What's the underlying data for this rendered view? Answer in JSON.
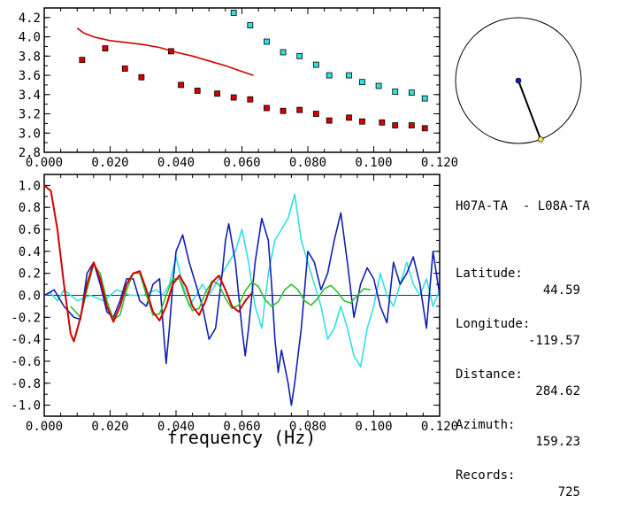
{
  "station_pair": "H07A-TA  - L08A-TA",
  "info": [
    {
      "label": "Latitude:",
      "value": "44.59"
    },
    {
      "label": "Longitude:",
      "value": "-119.57"
    },
    {
      "label": "Distance:",
      "value": "284.62"
    },
    {
      "label": "Azimuth:",
      "value": "159.23"
    },
    {
      "label": "Records:",
      "value": "725"
    }
  ],
  "azimuth_deg": 159.23,
  "colors": {
    "red": "#d40000",
    "cyan": "#30e0e0",
    "blue": "#1020b0",
    "green": "#30c030",
    "yellow": "#f0e050"
  },
  "chart_data": [
    {
      "type": "scatter",
      "xlim": [
        0.0,
        0.12
      ],
      "ylim": [
        2.8,
        4.3
      ],
      "xticks": [
        "0.000",
        "0.020",
        "0.040",
        "0.060",
        "0.080",
        "0.100",
        "0.120"
      ],
      "yticks": [
        "2.8",
        "3.0",
        "3.2",
        "3.4",
        "3.6",
        "3.8",
        "4.0",
        "4.2"
      ],
      "series": [
        {
          "kind": "points",
          "color": "red",
          "x": [
            0.0115,
            0.0185,
            0.0245,
            0.0295,
            0.0385,
            0.0415,
            0.0465,
            0.0525,
            0.0575,
            0.0625,
            0.0675,
            0.0725,
            0.0775,
            0.0825,
            0.0865,
            0.0925,
            0.0965,
            0.1025,
            0.1065,
            0.1115,
            0.1155
          ],
          "y": [
            3.76,
            3.88,
            3.67,
            3.58,
            3.85,
            3.5,
            3.44,
            3.41,
            3.37,
            3.35,
            3.26,
            3.23,
            3.24,
            3.2,
            3.13,
            3.16,
            3.12,
            3.11,
            3.08,
            3.08,
            3.05
          ]
        },
        {
          "kind": "points",
          "color": "cyan",
          "x": [
            0.0575,
            0.0625,
            0.0675,
            0.0725,
            0.0775,
            0.0825,
            0.0865,
            0.0925,
            0.0965,
            0.1015,
            0.1065,
            0.1115,
            0.1155
          ],
          "y": [
            4.25,
            4.12,
            3.95,
            3.84,
            3.8,
            3.71,
            3.6,
            3.6,
            3.53,
            3.49,
            3.43,
            3.42,
            3.36
          ]
        },
        {
          "kind": "line",
          "color": "red",
          "x": [
            0.01,
            0.012,
            0.015,
            0.02,
            0.025,
            0.03,
            0.035,
            0.04,
            0.045,
            0.05,
            0.055,
            0.06,
            0.0635
          ],
          "y": [
            4.09,
            4.04,
            4.0,
            3.96,
            3.94,
            3.92,
            3.89,
            3.84,
            3.8,
            3.75,
            3.7,
            3.64,
            3.6
          ]
        }
      ]
    },
    {
      "type": "line",
      "xlim": [
        0.0,
        0.12
      ],
      "ylim": [
        -1.1,
        1.1
      ],
      "xticks": [
        "0.000",
        "0.020",
        "0.040",
        "0.060",
        "0.080",
        "0.100",
        "0.120"
      ],
      "yticks": [
        "1.0",
        "0.8",
        "0.6",
        "0.4",
        "0.2",
        "0.0",
        "-0.2",
        "-0.4",
        "-0.6",
        "-0.8",
        "-1.0"
      ],
      "ytick_values": [
        1.0,
        0.8,
        0.6,
        0.4,
        0.2,
        0.0,
        -0.2,
        -0.4,
        -0.6,
        -0.8,
        -1.0
      ],
      "xlabel": "frequency (Hz)",
      "series": [
        {
          "color": "red",
          "x": [
            0,
            0.002,
            0.004,
            0.006,
            0.008,
            0.009,
            0.011,
            0.013,
            0.015,
            0.017,
            0.019,
            0.021,
            0.023,
            0.025,
            0.027,
            0.029,
            0.031,
            0.033,
            0.035,
            0.037,
            0.039,
            0.041,
            0.043,
            0.045,
            0.047,
            0.049,
            0.051,
            0.053,
            0.055,
            0.057,
            0.059,
            0.061,
            0.063
          ],
          "y": [
            1.0,
            0.95,
            0.6,
            0.1,
            -0.35,
            -0.42,
            -0.2,
            0.1,
            0.3,
            0.15,
            -0.1,
            -0.24,
            -0.1,
            0.1,
            0.2,
            0.22,
            0.05,
            -0.15,
            -0.23,
            -0.1,
            0.1,
            0.18,
            0.08,
            -0.1,
            -0.18,
            -0.05,
            0.12,
            0.18,
            0.05,
            -0.1,
            -0.15,
            -0.05,
            0.02
          ]
        },
        {
          "color": "green",
          "x": [
            0.008,
            0.011,
            0.013,
            0.015,
            0.017,
            0.019,
            0.021,
            0.023,
            0.025,
            0.027,
            0.029,
            0.031,
            0.033,
            0.035,
            0.037,
            0.039,
            0.041,
            0.043,
            0.045,
            0.047,
            0.049,
            0.051,
            0.053,
            0.055,
            0.057,
            0.059,
            0.061,
            0.063,
            0.065,
            0.067,
            0.069,
            0.071,
            0.073,
            0.075,
            0.077,
            0.079,
            0.081,
            0.083,
            0.085,
            0.087,
            0.089,
            0.091,
            0.093,
            0.095,
            0.097,
            0.099
          ],
          "y": [
            -0.1,
            -0.2,
            0.05,
            0.28,
            0.2,
            -0.05,
            -0.22,
            -0.18,
            0.05,
            0.2,
            0.2,
            0.0,
            -0.18,
            -0.17,
            0.0,
            0.15,
            0.15,
            -0.02,
            -0.14,
            -0.12,
            0.03,
            0.13,
            0.1,
            -0.03,
            -0.12,
            -0.09,
            0.04,
            0.12,
            0.08,
            -0.04,
            -0.1,
            -0.06,
            0.05,
            0.1,
            0.05,
            -0.05,
            -0.09,
            -0.03,
            0.06,
            0.09,
            0.03,
            -0.05,
            -0.07,
            0.0,
            0.06,
            0.05
          ]
        },
        {
          "color": "blue",
          "x": [
            0.0,
            0.003,
            0.006,
            0.009,
            0.011,
            0.013,
            0.015,
            0.017,
            0.019,
            0.021,
            0.023,
            0.025,
            0.027,
            0.029,
            0.031,
            0.033,
            0.035,
            0.036,
            0.037,
            0.038,
            0.039,
            0.04,
            0.042,
            0.044,
            0.046,
            0.048,
            0.05,
            0.052,
            0.054,
            0.055,
            0.056,
            0.058,
            0.06,
            0.061,
            0.062,
            0.064,
            0.066,
            0.068,
            0.069,
            0.07,
            0.071,
            0.072,
            0.074,
            0.075,
            0.076,
            0.078,
            0.08,
            0.082,
            0.084,
            0.086,
            0.088,
            0.09,
            0.092,
            0.094,
            0.096,
            0.098,
            0.1,
            0.102,
            0.104,
            0.106,
            0.108,
            0.11,
            0.112,
            0.114,
            0.116,
            0.118,
            0.12
          ],
          "y": [
            0.0,
            0.05,
            -0.1,
            -0.2,
            -0.22,
            0.2,
            0.3,
            0.1,
            -0.15,
            -0.2,
            -0.05,
            0.15,
            0.15,
            -0.05,
            -0.1,
            0.1,
            0.15,
            -0.25,
            -0.62,
            -0.3,
            0.1,
            0.4,
            0.55,
            0.3,
            0.1,
            -0.1,
            -0.4,
            -0.3,
            0.2,
            0.5,
            0.65,
            0.3,
            -0.3,
            -0.55,
            -0.3,
            0.3,
            0.7,
            0.5,
            0.1,
            -0.4,
            -0.7,
            -0.5,
            -0.8,
            -1.0,
            -0.8,
            -0.3,
            0.4,
            0.3,
            0.05,
            0.2,
            0.5,
            0.75,
            0.3,
            -0.2,
            0.1,
            0.25,
            0.15,
            -0.1,
            -0.25,
            0.3,
            0.1,
            0.2,
            0.35,
            0.1,
            -0.3,
            0.4,
            0.0
          ]
        },
        {
          "color": "cyan",
          "x": [
            0.0,
            0.002,
            0.004,
            0.006,
            0.01,
            0.014,
            0.018,
            0.022,
            0.026,
            0.03,
            0.034,
            0.036,
            0.038,
            0.04,
            0.042,
            0.044,
            0.046,
            0.048,
            0.05,
            0.052,
            0.054,
            0.056,
            0.058,
            0.06,
            0.062,
            0.064,
            0.066,
            0.068,
            0.07,
            0.072,
            0.074,
            0.076,
            0.078,
            0.08,
            0.082,
            0.084,
            0.086,
            0.088,
            0.09,
            0.092,
            0.094,
            0.096,
            0.098,
            0.1,
            0.102,
            0.104,
            0.106,
            0.108,
            0.11,
            0.112,
            0.114,
            0.116,
            0.118,
            0.12
          ],
          "y": [
            0.0,
            0.02,
            -0.05,
            0.05,
            -0.05,
            0.0,
            -0.05,
            0.05,
            0.0,
            0.0,
            0.05,
            0.0,
            0.1,
            0.35,
            0.1,
            -0.1,
            0.0,
            0.1,
            0.0,
            0.1,
            0.2,
            0.3,
            0.4,
            0.6,
            0.3,
            -0.1,
            -0.3,
            0.2,
            0.5,
            0.6,
            0.7,
            0.92,
            0.5,
            0.3,
            0.1,
            -0.1,
            -0.4,
            -0.3,
            -0.1,
            -0.3,
            -0.55,
            -0.65,
            -0.3,
            -0.1,
            0.2,
            0.0,
            -0.1,
            0.1,
            0.3,
            0.1,
            0.0,
            0.15,
            -0.1,
            0.05
          ]
        }
      ]
    }
  ]
}
